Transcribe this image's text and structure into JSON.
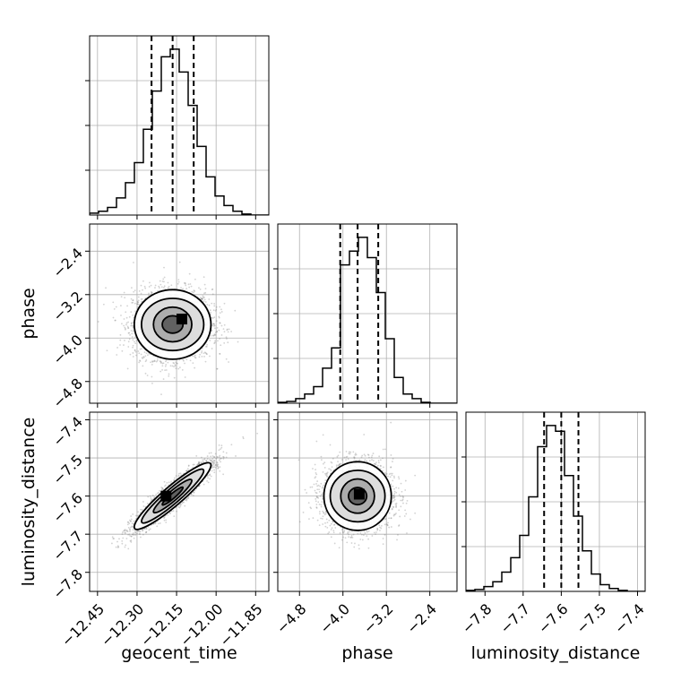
{
  "chart_data": {
    "type": "corner",
    "parameters": [
      {
        "name": "geocent_time",
        "label": "geocent_time",
        "range": [
          -12.48,
          -11.8
        ],
        "ticks": [
          -12.45,
          -12.3,
          -12.15,
          -12.0,
          -11.85
        ],
        "tick_labels": [
          "−12.45",
          "−12.30",
          "−12.15",
          "−12.00",
          "−11.85"
        ],
        "quantiles": [
          -12.245,
          -12.165,
          -12.085
        ]
      },
      {
        "name": "phase",
        "label": "phase",
        "range": [
          -5.2,
          -1.9
        ],
        "ticks": [
          -4.8,
          -4.0,
          -3.2,
          -2.4
        ],
        "tick_labels": [
          "−4.8",
          "−4.0",
          "−3.2",
          "−2.4"
        ],
        "quantiles": [
          -4.05,
          -3.73,
          -3.35
        ]
      },
      {
        "name": "luminosity_distance",
        "label": "luminosity_distance",
        "range": [
          -7.85,
          -7.38
        ],
        "ticks": [
          -7.8,
          -7.7,
          -7.6,
          -7.5,
          -7.4
        ],
        "tick_labels": [
          "−7.8",
          "−7.7",
          "−7.6",
          "−7.5",
          "−7.4"
        ],
        "quantiles": [
          -7.645,
          -7.6,
          -7.555
        ]
      }
    ],
    "histograms": [
      {
        "param": "geocent_time",
        "bin_edges": [
          -12.48,
          -12.446,
          -12.412,
          -12.378,
          -12.344,
          -12.31,
          -12.276,
          -12.242,
          -12.208,
          -12.174,
          -12.14,
          -12.106,
          -12.072,
          -12.038,
          -12.004,
          -11.97,
          -11.936,
          -11.902,
          -11.868,
          -11.834,
          -11.8
        ],
        "counts": [
          2,
          4,
          8,
          18,
          34,
          55,
          90,
          130,
          166,
          174,
          150,
          115,
          72,
          40,
          20,
          10,
          4,
          1,
          0,
          0
        ]
      },
      {
        "param": "phase",
        "bin_edges": [
          -5.2,
          -5.035,
          -4.87,
          -4.705,
          -4.54,
          -4.375,
          -4.21,
          -4.045,
          -3.88,
          -3.715,
          -3.55,
          -3.385,
          -3.22,
          -3.055,
          -2.89,
          -2.725,
          -2.56,
          -2.395,
          -2.23,
          -2.065,
          -1.9
        ],
        "counts": [
          1,
          2,
          5,
          10,
          18,
          38,
          60,
          150,
          165,
          180,
          158,
          120,
          70,
          28,
          10,
          5,
          1,
          0,
          0,
          0
        ]
      },
      {
        "param": "luminosity_distance",
        "bin_edges": [
          -7.85,
          -7.8265,
          -7.803,
          -7.7795,
          -7.756,
          -7.7325,
          -7.709,
          -7.6855,
          -7.662,
          -7.6385,
          -7.615,
          -7.5915,
          -7.568,
          -7.5445,
          -7.521,
          -7.4975,
          -7.474,
          -7.4505,
          -7.427,
          -7.4035,
          -7.38
        ],
        "counts": [
          1,
          2,
          5,
          10,
          20,
          35,
          58,
          98,
          150,
          172,
          166,
          120,
          78,
          42,
          18,
          7,
          3,
          1,
          0,
          0
        ]
      }
    ],
    "scatter_panels": [
      {
        "x": "geocent_time",
        "y": "phase",
        "center": [
          -12.165,
          -3.75
        ],
        "sd": [
          0.075,
          0.32
        ],
        "corr": 0.0,
        "mode": [
          -12.13,
          -3.65
        ]
      },
      {
        "x": "geocent_time",
        "y": "luminosity_distance",
        "center": [
          -12.165,
          -7.6
        ],
        "sd": [
          0.075,
          0.045
        ],
        "corr": 0.93,
        "mode": [
          -12.19,
          -7.6
        ]
      },
      {
        "x": "phase",
        "y": "luminosity_distance",
        "center": [
          -3.73,
          -7.6
        ],
        "sd": [
          0.32,
          0.045
        ],
        "corr": 0.0,
        "mode": [
          -3.7,
          -7.595
        ]
      }
    ],
    "contour_levels_sigma": [
      0.5,
      1.0,
      1.5,
      2.0
    ],
    "grid": true,
    "colors": {
      "line": "#000000",
      "points": "#7f7f7f",
      "grid": "#b0b0b0"
    }
  }
}
